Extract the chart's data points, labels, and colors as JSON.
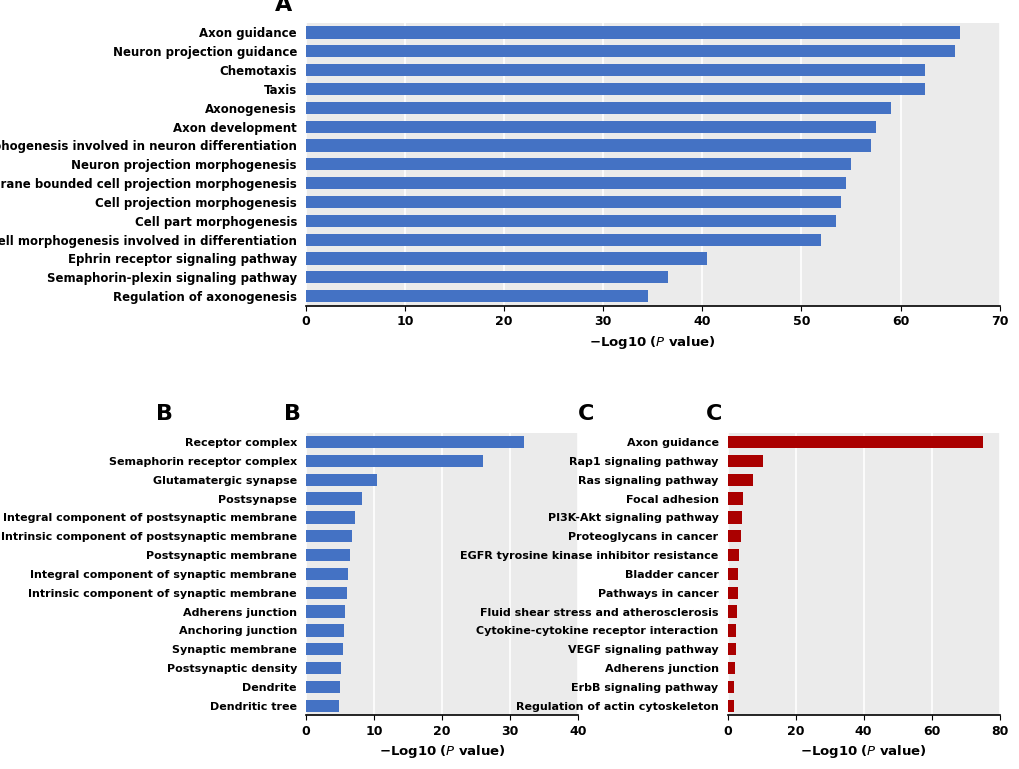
{
  "panel_A": {
    "title_label": "A",
    "categories": [
      "Regulation of axonogenesis",
      "Semaphorin-plexin signaling pathway",
      "Ephrin receptor signaling pathway",
      "Cell morphogenesis involved in differentiation",
      "Cell part morphogenesis",
      "Cell projection morphogenesis",
      "Plasma membrane bounded cell projection morphogenesis",
      "Neuron projection morphogenesis",
      "Cell morphogenesis involved in neuron differentiation",
      "Axon development",
      "Axonogenesis",
      "Taxis",
      "Chemotaxis",
      "Neuron projection guidance",
      "Axon guidance"
    ],
    "values": [
      34.5,
      36.5,
      40.5,
      52.0,
      53.5,
      54.0,
      54.5,
      55.0,
      57.0,
      57.5,
      59.0,
      62.5,
      62.5,
      65.5,
      66.0
    ],
    "color": "#4472C4",
    "xlim": [
      0,
      70
    ],
    "xticks": [
      0,
      10,
      20,
      30,
      40,
      50,
      60,
      70
    ]
  },
  "panel_B": {
    "title_label": "B",
    "categories": [
      "Dendritic tree",
      "Dendrite",
      "Postsynaptic density",
      "Synaptic membrane",
      "Anchoring junction",
      "Adherens junction",
      "Intrinsic component of synaptic membrane",
      "Integral component of synaptic membrane",
      "Postsynaptic membrane",
      "Intrinsic component of postsynaptic membrane",
      "Integral component of postsynaptic membrane",
      "Postsynapse",
      "Glutamatergic synapse",
      "Semaphorin receptor complex",
      "Receptor complex"
    ],
    "values": [
      4.8,
      5.0,
      5.2,
      5.4,
      5.6,
      5.8,
      6.0,
      6.2,
      6.5,
      6.8,
      7.2,
      8.2,
      10.5,
      26.0,
      32.0
    ],
    "color": "#4472C4",
    "xlim": [
      0,
      40
    ],
    "xticks": [
      0,
      10,
      20,
      30,
      40
    ]
  },
  "panel_C": {
    "title_label": "C",
    "categories": [
      "Regulation of actin cytoskeleton",
      "ErbB signaling pathway",
      "Adherens junction",
      "VEGF signaling pathway",
      "Cytokine-cytokine receptor interaction",
      "Fluid shear stress and atherosclerosis",
      "Pathways in cancer",
      "Bladder cancer",
      "EGFR tyrosine kinase inhibitor resistance",
      "Proteoglycans in cancer",
      "PI3K-Akt signaling pathway",
      "Focal adhesion",
      "Ras signaling pathway",
      "Rap1 signaling pathway",
      "Axon guidance"
    ],
    "values": [
      1.8,
      2.0,
      2.2,
      2.4,
      2.6,
      2.8,
      3.0,
      3.2,
      3.5,
      4.0,
      4.2,
      4.5,
      7.5,
      10.5,
      75.0
    ],
    "color": "#AA0000",
    "xlim": [
      0,
      80
    ],
    "xticks": [
      0,
      20,
      40,
      60,
      80
    ]
  },
  "bg_color": "#ebebeb",
  "bar_height": 0.65,
  "label_fontsize_A": 8.5,
  "label_fontsize_BC": 8.0,
  "axis_label_fontsize": 9.5,
  "tick_fontsize": 9.0,
  "panel_label_fontsize": 16
}
